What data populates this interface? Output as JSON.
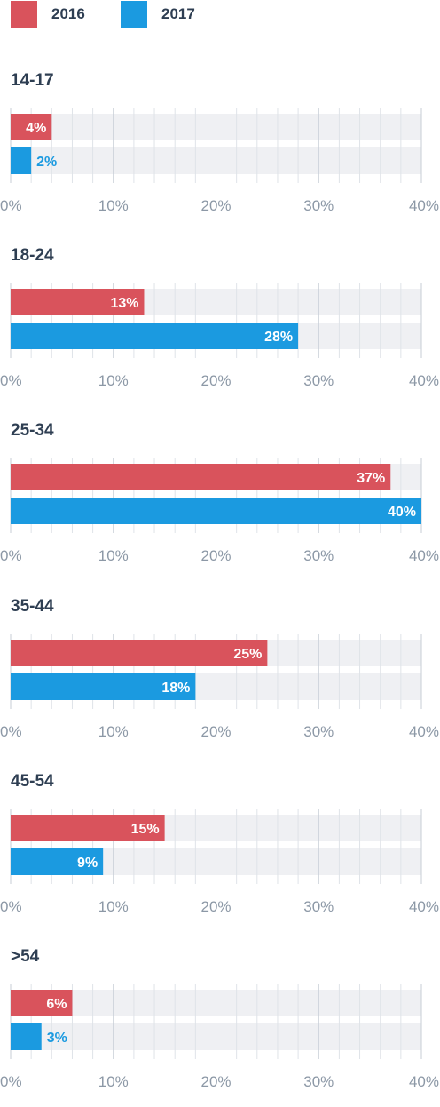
{
  "legend": [
    {
      "label": "2016",
      "color": "#d9535c"
    },
    {
      "label": "2017",
      "color": "#1b9ae0"
    }
  ],
  "chart_data": {
    "type": "bar",
    "orientation": "horizontal",
    "xlim": [
      0,
      40
    ],
    "tick_labels": [
      "0%",
      "10%",
      "20%",
      "30%",
      "40%"
    ],
    "grid": true,
    "legend_position": "top-left",
    "series": [
      {
        "name": "2016",
        "color": "#d9535c"
      },
      {
        "name": "2017",
        "color": "#1b9ae0"
      }
    ],
    "groups": [
      {
        "title": "14-17",
        "values": [
          4,
          2
        ],
        "labels": [
          "4%",
          "2%"
        ]
      },
      {
        "title": "18-24",
        "values": [
          13,
          28
        ],
        "labels": [
          "13%",
          "28%"
        ]
      },
      {
        "title": "25-34",
        "values": [
          37,
          40
        ],
        "labels": [
          "37%",
          "40%"
        ]
      },
      {
        "title": "35-44",
        "values": [
          25,
          18
        ],
        "labels": [
          "25%",
          "18%"
        ]
      },
      {
        "title": "45-54",
        "values": [
          15,
          9
        ],
        "labels": [
          "15%",
          "9%"
        ]
      },
      {
        "title": ">54",
        "values": [
          6,
          3
        ],
        "labels": [
          "6%",
          "3%"
        ]
      }
    ]
  }
}
